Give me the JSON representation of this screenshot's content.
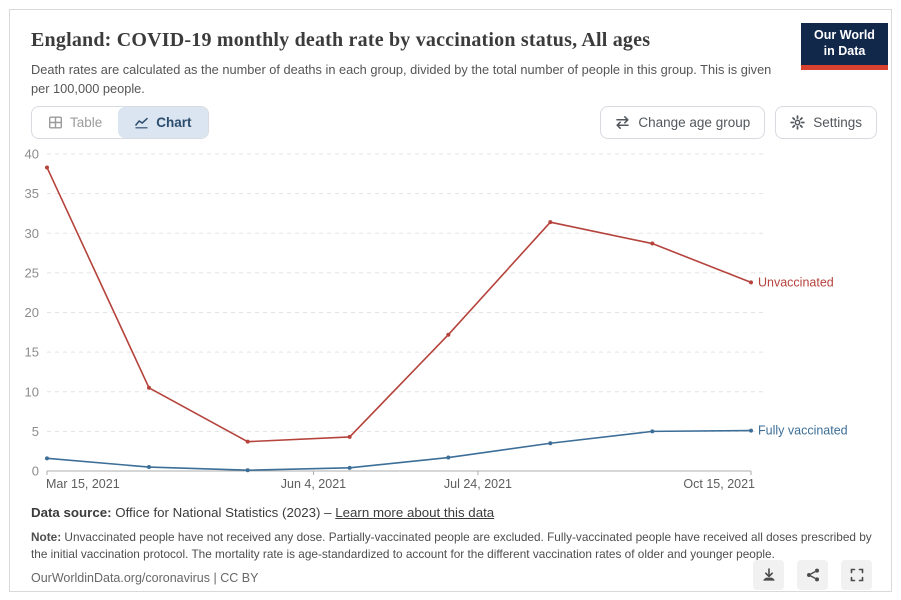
{
  "header": {
    "title": "England: COVID-19 monthly death rate by vaccination status, All ages",
    "subtitle": "Death rates are calculated as the number of deaths in each group, divided by the total number of people in this group. This is given per 100,000 people.",
    "logo": {
      "line1": "Our World",
      "line2": "in Data",
      "bg": "#12284b",
      "stripe": "#d8402f"
    }
  },
  "toolbar": {
    "tabs": [
      {
        "label": "Table",
        "active": false
      },
      {
        "label": "Chart",
        "active": true
      }
    ],
    "buttons": [
      {
        "label": "Change age group",
        "icon": "swap-arrows-icon"
      },
      {
        "label": "Settings",
        "icon": "gear-icon"
      }
    ]
  },
  "chart_data": {
    "type": "line",
    "title": "England: COVID-19 monthly death rate by vaccination status, All ages",
    "x": [
      "Mar 15, 2021",
      "Apr 15, 2021",
      "May 15, 2021",
      "Jun 15, 2021",
      "Jul 15, 2021",
      "Aug 15, 2021",
      "Sep 15, 2021",
      "Oct 15, 2021"
    ],
    "x_days": [
      0,
      31,
      61,
      92,
      122,
      153,
      184,
      214
    ],
    "x_tick_labels": [
      "Mar 15, 2021",
      "Jun 4, 2021",
      "Jul 24, 2021",
      "Oct 15, 2021"
    ],
    "x_tick_days": [
      0,
      81,
      131,
      214
    ],
    "series": [
      {
        "name": "Unvaccinated",
        "color": "#b5433c",
        "values": [
          38.3,
          10.5,
          3.7,
          4.3,
          17.2,
          31.4,
          28.7,
          23.8
        ]
      },
      {
        "name": "Fully vaccinated",
        "color": "#3c6e97",
        "values": [
          1.6,
          0.5,
          0.1,
          0.4,
          1.7,
          3.5,
          5.0,
          5.1
        ]
      }
    ],
    "ylim": [
      0,
      40
    ],
    "yticks": [
      0,
      5,
      10,
      15,
      20,
      25,
      30,
      35,
      40
    ],
    "grid": "horizontal dashed",
    "legend_position": "right end-of-line labels"
  },
  "footer": {
    "datasource_label": "Data source:",
    "datasource_text": " Office for National Statistics (2023) – ",
    "datasource_link": "Learn more about this data",
    "note_label": "Note:",
    "note_text": " Unvaccinated people have not received any dose. Partially-vaccinated people are excluded. Fully-vaccinated people have received all doses prescribed by the initial vaccination protocol. The mortality rate is age-standardized to account for the different vaccination rates of older and younger people."
  },
  "bottombar": {
    "citation": "OurWorldinData.org/coronavirus | CC BY",
    "actions": [
      "download",
      "share",
      "fullscreen"
    ]
  }
}
